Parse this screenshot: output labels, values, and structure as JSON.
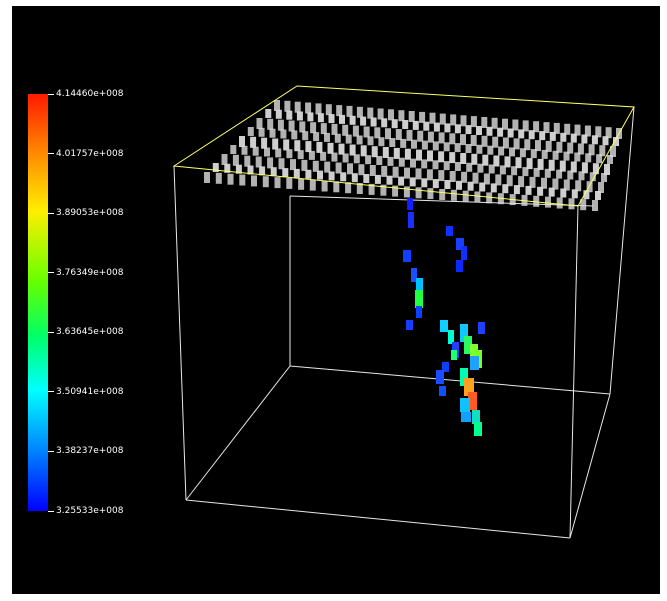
{
  "viewer": {
    "background": "#000000",
    "box_edge_color": "#ffffff",
    "top_face_color": "#ffff66",
    "surface_voxel_color": "#d9d9d9"
  },
  "colorbar": {
    "max_color": "#ff1a00",
    "min_color": "#0000ff",
    "ticks": [
      {
        "label": "4.14460e+008"
      },
      {
        "label": "4.01757e+008"
      },
      {
        "label": "3.89053e+008"
      },
      {
        "label": "3.76349e+008"
      },
      {
        "label": "3.63645e+008"
      },
      {
        "label": "3.50941e+008"
      },
      {
        "label": "3.38237e+008"
      },
      {
        "label": "3.25533e+008"
      }
    ]
  }
}
